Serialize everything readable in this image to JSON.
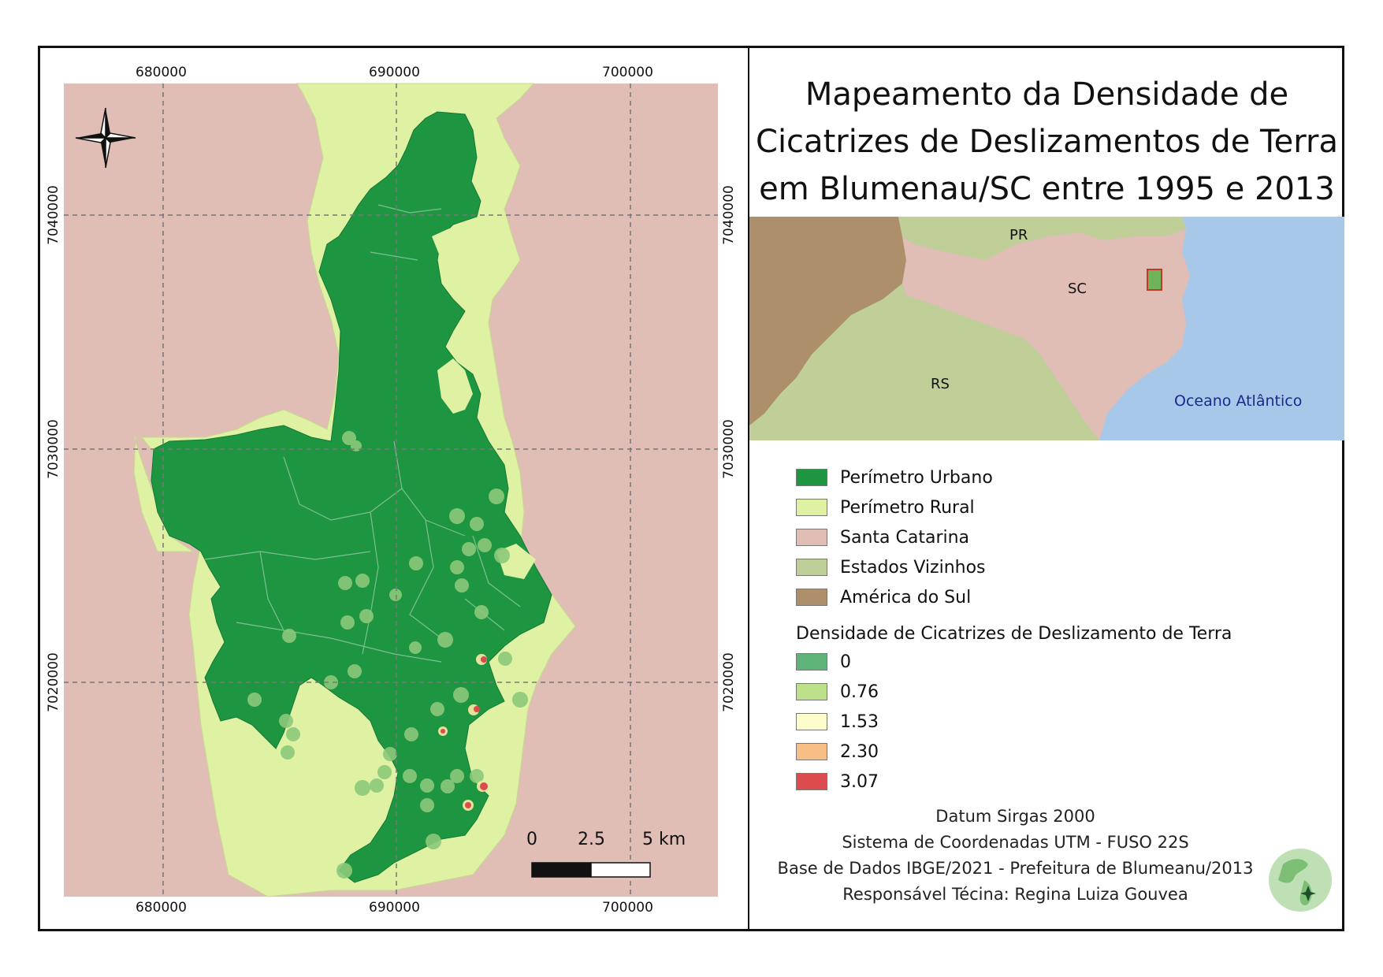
{
  "title": {
    "line1": "Mapeamento da Densidade de",
    "line2": "Cicatrizes de Deslizamentos de Terra",
    "line3": "em Blumenau/SC entre 1995 e 2013"
  },
  "grid": {
    "x_labels": [
      "680000",
      "690000",
      "700000"
    ],
    "y_labels": [
      "7040000",
      "7030000",
      "7020000"
    ]
  },
  "inset": {
    "labels": {
      "pr": "PR",
      "sc": "SC",
      "rs": "RS",
      "ocean": "Oceano Atlântico"
    }
  },
  "legend": {
    "classes": [
      {
        "label": "Perímetro Urbano",
        "color": "#1d9541"
      },
      {
        "label": "Perímetro Rural",
        "color": "#dff2a4"
      },
      {
        "label": "Santa Catarina",
        "color": "#e0beb6"
      },
      {
        "label": "Estados Vizinhos",
        "color": "#bfcf97"
      },
      {
        "label": "América do Sul",
        "color": "#ad8f6b"
      }
    ],
    "density_heading": "Densidade de Cicatrizes de Deslizamento de Terra",
    "density": [
      {
        "label": "0",
        "color": "#5fb47a"
      },
      {
        "label": "0.76",
        "color": "#bde08a"
      },
      {
        "label": "1.53",
        "color": "#fdfdcb"
      },
      {
        "label": "2.30",
        "color": "#f7be86"
      },
      {
        "label": "3.07",
        "color": "#dc4b4e"
      }
    ]
  },
  "scale_bar": {
    "l0": "0",
    "l1": "2.5",
    "l2": "5 km"
  },
  "credits": {
    "datum": "Datum Sirgas 2000",
    "system": "Sistema de Coordenadas UTM - FUSO 22S",
    "base": "Base de Dados IBGE/2021 - Prefeitura de Blumeanu/2013",
    "author": "Responsável Técina: Regina Luiza Gouvea"
  },
  "icons": {
    "north_arrow": "compass-rose-icon",
    "logo": "globe-logo-icon"
  }
}
